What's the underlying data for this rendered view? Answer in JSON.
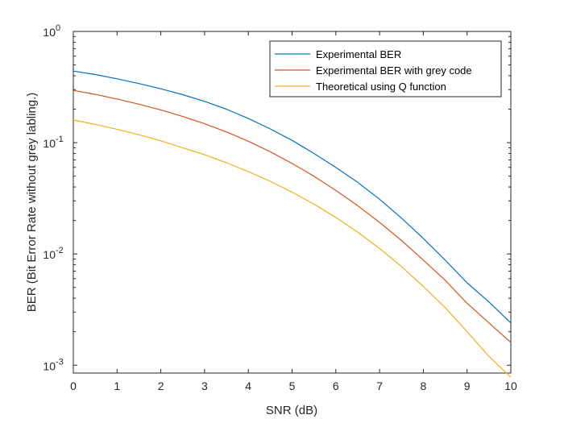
{
  "chart_data": {
    "type": "line",
    "xlabel": "SNR (dB)",
    "ylabel": "BER (Bit Error Rate without grey labling.)",
    "xlim": [
      0,
      10
    ],
    "ylim": [
      0.00085,
      1
    ],
    "yscale": "log",
    "xticks": [
      0,
      1,
      2,
      3,
      4,
      5,
      6,
      7,
      8,
      9,
      10
    ],
    "yticks": [
      {
        "value": 0.001,
        "base": "10",
        "exp": "-3"
      },
      {
        "value": 0.01,
        "base": "10",
        "exp": "-2"
      },
      {
        "value": 0.1,
        "base": "10",
        "exp": "-1"
      },
      {
        "value": 1,
        "base": "10",
        "exp": "0"
      }
    ],
    "grid": false,
    "legend_position": "top-right",
    "x": [
      0,
      0.5,
      1,
      1.5,
      2,
      2.5,
      3,
      3.5,
      4,
      4.5,
      5,
      5.5,
      6,
      6.5,
      7,
      7.5,
      8,
      8.5,
      9,
      9.5,
      10
    ],
    "series": [
      {
        "name": "Experimental BER",
        "color": "#0072BD",
        "values": [
          0.44,
          0.41,
          0.375,
          0.34,
          0.305,
          0.27,
          0.235,
          0.2,
          0.165,
          0.133,
          0.105,
          0.08,
          0.06,
          0.044,
          0.031,
          0.021,
          0.0138,
          0.0088,
          0.0055,
          0.0037,
          0.0024
        ]
      },
      {
        "name": "Experimental BER with grey code",
        "color": "#D95319",
        "values": [
          0.295,
          0.272,
          0.247,
          0.222,
          0.197,
          0.172,
          0.148,
          0.125,
          0.103,
          0.083,
          0.065,
          0.05,
          0.0372,
          0.0272,
          0.0192,
          0.0132,
          0.0088,
          0.0058,
          0.0036,
          0.0024,
          0.0016
        ]
      },
      {
        "name": "Theoretical using Q function",
        "color": "#EDB120",
        "values": [
          0.16,
          0.146,
          0.132,
          0.118,
          0.104,
          0.09,
          0.078,
          0.066,
          0.055,
          0.045,
          0.036,
          0.028,
          0.0213,
          0.0157,
          0.0112,
          0.0077,
          0.0051,
          0.0033,
          0.002,
          0.0012,
          0.00078
        ]
      }
    ]
  }
}
